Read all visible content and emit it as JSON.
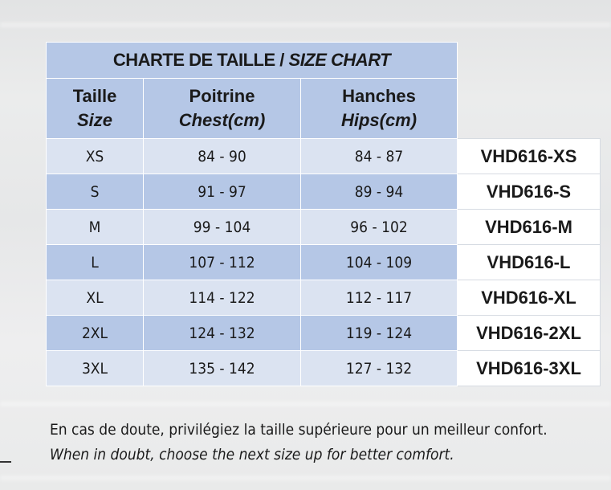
{
  "chart_data": {
    "type": "table",
    "title_fr": "CHARTE DE TAILLE /",
    "title_en": "SIZE CHART",
    "headers": [
      {
        "fr": "Taille",
        "en": "Size"
      },
      {
        "fr": "Poitrine",
        "en": "Chest(cm)"
      },
      {
        "fr": "Hanches",
        "en": "Hips(cm)"
      }
    ],
    "rows": [
      {
        "size": "XS",
        "chest": "84 - 90",
        "hips": "84 - 87",
        "code": "VHD616-XS"
      },
      {
        "size": "S",
        "chest": "91 - 97",
        "hips": "89 - 94",
        "code": "VHD616-S"
      },
      {
        "size": "M",
        "chest": "99 - 104",
        "hips": "96 - 102",
        "code": "VHD616-M"
      },
      {
        "size": "L",
        "chest": "107 - 112",
        "hips": "104 - 109",
        "code": "VHD616-L"
      },
      {
        "size": "XL",
        "chest": "114 - 122",
        "hips": "112 - 117",
        "code": "VHD616-XL"
      },
      {
        "size": "2XL",
        "chest": "124 - 132",
        "hips": "119 - 124",
        "code": "VHD616-2XL"
      },
      {
        "size": "3XL",
        "chest": "135 - 142",
        "hips": "127 - 132",
        "code": "VHD616-3XL"
      }
    ]
  },
  "notes": {
    "fr": "En cas de doute, privilégiez la taille supérieure pour un meilleur confort.",
    "en": "When in doubt, choose the next size up for better comfort."
  },
  "colors": {
    "header_blue": "#b5c7e6",
    "row_light": "#dbe3f1",
    "row_dark": "#b5c7e6",
    "code_bg": "#ffffff"
  }
}
